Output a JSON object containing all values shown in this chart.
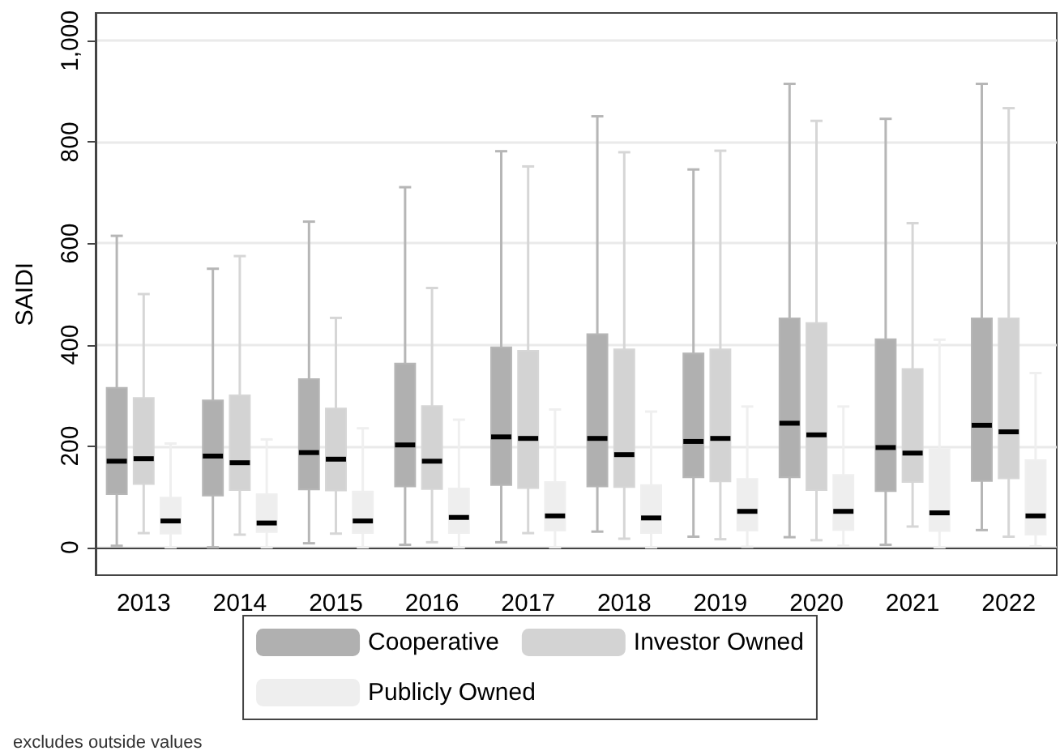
{
  "chart_data": {
    "type": "box",
    "ylabel": "SAIDI",
    "categories": [
      "2013",
      "2014",
      "2015",
      "2016",
      "2017",
      "2018",
      "2019",
      "2020",
      "2021",
      "2022"
    ],
    "ylim": [
      -55,
      1055
    ],
    "yticks": [
      0,
      200,
      400,
      600,
      800,
      {
        "value": 1000,
        "label": "1,000"
      }
    ],
    "grid": "y",
    "legend": "bottom",
    "annotations": [
      "excludes outside values"
    ],
    "series": [
      {
        "name": "Cooperative",
        "color": "#b0b0b0",
        "boxes": [
          {
            "low": 3,
            "q1": 105,
            "median": 170,
            "q3": 315,
            "high": 615
          },
          {
            "low": 0,
            "q1": 102,
            "median": 180,
            "q3": 290,
            "high": 550
          },
          {
            "low": 8,
            "q1": 114,
            "median": 187,
            "q3": 332,
            "high": 643
          },
          {
            "low": 5,
            "q1": 120,
            "median": 202,
            "q3": 363,
            "high": 711
          },
          {
            "low": 10,
            "q1": 123,
            "median": 218,
            "q3": 395,
            "high": 782
          },
          {
            "low": 31,
            "q1": 120,
            "median": 215,
            "q3": 421,
            "high": 851
          },
          {
            "low": 21,
            "q1": 138,
            "median": 209,
            "q3": 383,
            "high": 746
          },
          {
            "low": 20,
            "q1": 138,
            "median": 245,
            "q3": 452,
            "high": 915
          },
          {
            "low": 5,
            "q1": 111,
            "median": 197,
            "q3": 411,
            "high": 846
          },
          {
            "low": 34,
            "q1": 131,
            "median": 241,
            "q3": 452,
            "high": 915
          }
        ]
      },
      {
        "name": "Investor Owned",
        "color": "#d3d3d3",
        "boxes": [
          {
            "low": 28,
            "q1": 125,
            "median": 175,
            "q3": 295,
            "high": 500
          },
          {
            "low": 25,
            "q1": 113,
            "median": 167,
            "q3": 300,
            "high": 575
          },
          {
            "low": 27,
            "q1": 112,
            "median": 174,
            "q3": 274,
            "high": 453
          },
          {
            "low": 10,
            "q1": 115,
            "median": 170,
            "q3": 279,
            "high": 512
          },
          {
            "low": 28,
            "q1": 117,
            "median": 215,
            "q3": 388,
            "high": 752
          },
          {
            "low": 17,
            "q1": 119,
            "median": 183,
            "q3": 391,
            "high": 780
          },
          {
            "low": 16,
            "q1": 130,
            "median": 215,
            "q3": 391,
            "high": 783
          },
          {
            "low": 14,
            "q1": 113,
            "median": 222,
            "q3": 443,
            "high": 842
          },
          {
            "low": 41,
            "q1": 129,
            "median": 186,
            "q3": 352,
            "high": 640
          },
          {
            "low": 21,
            "q1": 136,
            "median": 228,
            "q3": 452,
            "high": 867
          }
        ]
      },
      {
        "name": "Publicly Owned",
        "color": "#eeeeee",
        "boxes": [
          {
            "low": 0,
            "q1": 27,
            "median": 52,
            "q3": 98,
            "high": 205
          },
          {
            "low": 0,
            "q1": 30,
            "median": 48,
            "q3": 105,
            "high": 213
          },
          {
            "low": 0,
            "q1": 28,
            "median": 52,
            "q3": 110,
            "high": 235
          },
          {
            "low": 0,
            "q1": 28,
            "median": 59,
            "q3": 116,
            "high": 252
          },
          {
            "low": 0,
            "q1": 33,
            "median": 62,
            "q3": 129,
            "high": 272
          },
          {
            "low": 0,
            "q1": 28,
            "median": 58,
            "q3": 123,
            "high": 268
          },
          {
            "low": 1,
            "q1": 33,
            "median": 71,
            "q3": 135,
            "high": 278
          },
          {
            "low": 3,
            "q1": 34,
            "median": 71,
            "q3": 143,
            "high": 278
          },
          {
            "low": 0,
            "q1": 32,
            "median": 68,
            "q3": 194,
            "high": 410
          },
          {
            "low": 2,
            "q1": 25,
            "median": 62,
            "q3": 172,
            "high": 344
          }
        ]
      }
    ]
  }
}
